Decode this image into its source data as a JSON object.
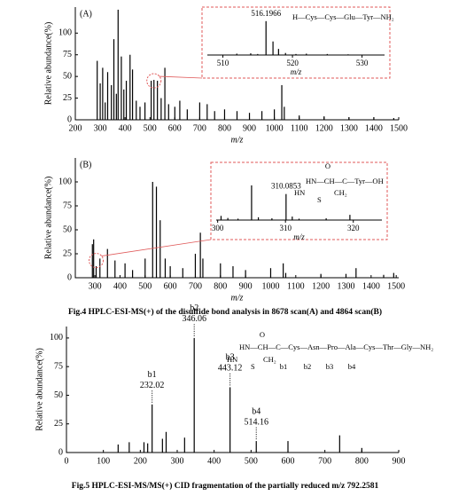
{
  "chart_data": [
    {
      "type": "stem",
      "label": "(A)",
      "xlabel": "m/z",
      "ylabel": "Relative abundance(%)",
      "color": "#000000",
      "x": [
        288,
        300,
        310,
        320,
        330,
        345,
        355,
        365,
        372,
        385,
        395,
        405,
        420,
        430,
        445,
        460,
        480,
        505,
        516,
        530,
        545,
        560,
        575,
        600,
        620,
        650,
        700,
        730,
        760,
        800,
        850,
        900,
        950,
        1000,
        1030,
        1040,
        1100,
        1200,
        1300,
        1400,
        1480
      ],
      "values": [
        68,
        42,
        60,
        20,
        55,
        40,
        93,
        30,
        127,
        73,
        35,
        45,
        75,
        58,
        22,
        15,
        20,
        45,
        46,
        45,
        25,
        60,
        18,
        15,
        22,
        12,
        20,
        18,
        10,
        12,
        10,
        8,
        10,
        12,
        40,
        15,
        5,
        4,
        3,
        3,
        2
      ],
      "xlim": [
        200,
        1500
      ],
      "xticks": [
        200,
        300,
        400,
        500,
        600,
        700,
        800,
        900,
        1000,
        1100,
        1200,
        1300,
        1400,
        1500
      ],
      "ylim": [
        0,
        130
      ],
      "yticks": [
        0,
        25,
        50,
        75,
        100
      ],
      "inset": {
        "type": "stem",
        "xlabel": "m/z",
        "color": "#000000",
        "x": [
          512,
          514,
          515,
          516.1966,
          517.2,
          518,
          519,
          520.5,
          522,
          525,
          528
        ],
        "values": [
          4,
          5,
          3,
          100,
          40,
          18,
          6,
          3,
          4,
          3,
          2
        ],
        "peak_labels": [
          null,
          null,
          null,
          "516.1966",
          null,
          null,
          null,
          null,
          null,
          null,
          null
        ],
        "xlim": [
          507,
          534
        ],
        "xticks": [
          510,
          520,
          530
        ],
        "ylim": [
          0,
          110
        ],
        "structure": [
          "H—Cys—Cys—Glu—Tyr—NH₂"
        ]
      }
    },
    {
      "type": "stem",
      "label": "(B)",
      "xlabel": "m/z",
      "ylabel": "Relative abundance(%)",
      "color": "#000000",
      "x": [
        290,
        295,
        305,
        320,
        350,
        380,
        420,
        450,
        500,
        530,
        545,
        560,
        580,
        600,
        650,
        700,
        720,
        730,
        800,
        850,
        900,
        1000,
        1050,
        1060,
        1200,
        1300,
        1340,
        1450,
        1490
      ],
      "values": [
        35,
        40,
        12,
        20,
        30,
        18,
        15,
        8,
        20,
        100,
        95,
        60,
        20,
        12,
        10,
        25,
        47,
        20,
        15,
        12,
        8,
        10,
        15,
        5,
        4,
        4,
        10,
        3,
        5
      ],
      "xlim": [
        222,
        1510
      ],
      "xticks": [
        300,
        400,
        500,
        600,
        700,
        800,
        900,
        1000,
        1100,
        1200,
        1300,
        1400,
        1500
      ],
      "ylim": [
        0,
        125
      ],
      "yticks": [
        0,
        25,
        50,
        75,
        100
      ],
      "inset": {
        "type": "stem",
        "xlabel": "m/z",
        "color": "#000000",
        "x": [
          300.5,
          301.5,
          303,
          305,
          306,
          308,
          310.0853,
          311,
          312,
          316,
          319.5
        ],
        "values": [
          12,
          6,
          4,
          100,
          8,
          5,
          75,
          10,
          4,
          5,
          15
        ],
        "peak_labels": [
          null,
          null,
          null,
          null,
          null,
          null,
          "310.0853",
          null,
          null,
          null,
          null
        ],
        "xlim": [
          299,
          325
        ],
        "xticks": [
          300,
          310,
          320
        ],
        "ylim": [
          0,
          110
        ],
        "structure": [
          "O",
          "HN—CH—C—Tyr—OH",
          "HN",
          "S",
          "CH₂"
        ]
      }
    },
    {
      "type": "stem",
      "ylabel": "Relative abundance(%)",
      "color": "#000000",
      "x": [
        140,
        170,
        210,
        220,
        232.02,
        260,
        270,
        320,
        346.06,
        443.12,
        514.16,
        600,
        740,
        800
      ],
      "values": [
        7,
        9,
        9,
        8,
        42,
        12,
        18,
        13,
        100,
        57,
        10,
        10,
        15,
        4
      ],
      "ion_labels": [
        null,
        null,
        null,
        null,
        "b1",
        null,
        null,
        null,
        "b2",
        "b3",
        "b4",
        null,
        null,
        null
      ],
      "peak_labels": [
        null,
        null,
        null,
        null,
        "232.02",
        null,
        null,
        null,
        "346.06",
        "443.12",
        "514.16",
        null,
        null,
        null
      ],
      "xlim": [
        0,
        900
      ],
      "xticks": [
        0,
        100,
        200,
        300,
        400,
        500,
        600,
        700,
        800,
        900
      ],
      "ylim": [
        0,
        110
      ],
      "yticks": [
        0,
        25,
        50,
        75,
        100
      ],
      "structure": [
        "O",
        "HN—CH—C—Cys—Asn—Pro—Ala—Cys—Thr—Gly—NH₂",
        "HN",
        "S",
        "CH₂",
        "b1",
        "b2",
        "b3",
        "b4"
      ]
    }
  ],
  "captions": [
    "Fig.4   HPLC-ESI-MS(+) of the disulfide bond analysis in 8678 scan(A) and 4864 scan(B)",
    "Fig.5   HPLC-ESI-MS/MS(+) CID fragmentation of the partially reduced m/z 792.2581"
  ]
}
